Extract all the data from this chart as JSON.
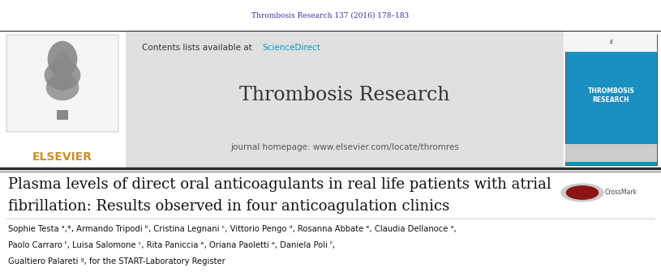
{
  "fig_width": 8.15,
  "fig_height": 3.41,
  "dpi": 100,
  "bg_color": "#ffffff",
  "header_bg": "#e0e0e0",
  "journal_ref_text": "Thrombosis Research 137 (2016) 178–183",
  "journal_ref_color": "#3333aa",
  "journal_ref_fontsize": 6.5,
  "sciencedirect_color": "#00a0c4",
  "journal_name": "Thrombosis Research",
  "journal_name_fontsize": 17,
  "journal_name_color": "#333333",
  "homepage_text": "journal homepage: www.elsevier.com/locate/thromres",
  "homepage_color": "#555555",
  "homepage_fontsize": 7.5,
  "elsevier_color": "#c8922a",
  "elsevier_fontsize": 10,
  "article_title_line1": "Plasma levels of direct oral anticoagulants in real life patients with atrial",
  "article_title_line2": "fibrillation: Results observed in four anticoagulation clinics",
  "article_title_fontsize": 13,
  "article_title_color": "#111111",
  "authors_line1": "Sophie Testa ᵃ,*, Armando Tripodi ᵇ, Cristina Legnani ᶜ, Vittorio Pengo ᵈ, Rosanna Abbate ᵉ, Claudia Dellanoce ᵃ,",
  "authors_line2": "Paolo Carraro ᶠ, Luisa Salomone ᶜ, Rita Paniccia ᵉ, Oriana Paoletti ᵃ, Daniela Poli ᶠ,",
  "authors_line3": "Gualtiero Palareti ᵍ, for the START-Laboratory Register",
  "authors_fontsize": 7.2,
  "authors_color": "#111111",
  "cover_bg": "#1a8fc1",
  "header_line_color": "#2c2c2c",
  "contents_fontsize": 7.5,
  "contents_color": "#333333"
}
